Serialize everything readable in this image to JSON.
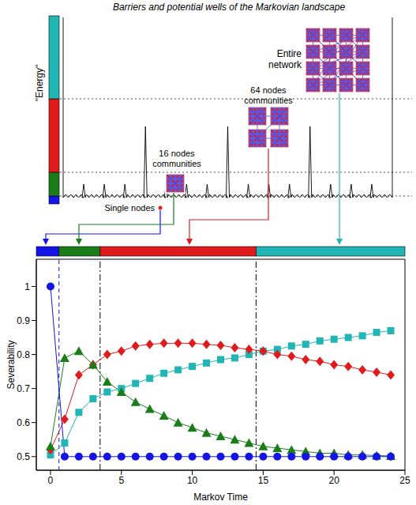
{
  "chart_data": {
    "type": "line",
    "x_label": "Markov Time",
    "y_label": "Severability",
    "x": [
      0,
      1,
      2,
      3,
      4,
      5,
      6,
      7,
      8,
      9,
      10,
      11,
      12,
      13,
      14,
      15,
      16,
      17,
      18,
      19,
      20,
      21,
      22,
      23,
      24
    ],
    "xlim": [
      -1,
      25
    ],
    "xticks": [
      0,
      5,
      10,
      15,
      20,
      25
    ],
    "ylim": [
      0.46,
      1.08
    ],
    "yticks": [
      0.5,
      0.6,
      0.7,
      0.8,
      0.9,
      1
    ],
    "grid": false,
    "phase_bounds": [
      0.6,
      3.5,
      14.5
    ],
    "series": [
      {
        "color": "#1414e6",
        "marker": "circle",
        "values": [
          1.0,
          0.5,
          0.5,
          0.5,
          0.5,
          0.5,
          0.5,
          0.5,
          0.5,
          0.5,
          0.5,
          0.5,
          0.5,
          0.5,
          0.5,
          0.5,
          0.5,
          0.5,
          0.5,
          0.5,
          0.5,
          0.5,
          0.5,
          0.5,
          0.5
        ]
      },
      {
        "color": "#1a7d1a",
        "marker": "triangle",
        "values": [
          0.53,
          0.79,
          0.81,
          0.77,
          0.72,
          0.69,
          0.66,
          0.64,
          0.62,
          0.6,
          0.585,
          0.57,
          0.56,
          0.55,
          0.54,
          0.53,
          0.525,
          0.52,
          0.515,
          0.51,
          0.51,
          0.505,
          0.505,
          0.503,
          0.502
        ]
      },
      {
        "color": "#e01b1b",
        "marker": "diamond",
        "values": [
          0.52,
          0.61,
          0.74,
          0.77,
          0.8,
          0.81,
          0.825,
          0.83,
          0.833,
          0.833,
          0.833,
          0.83,
          0.827,
          0.82,
          0.815,
          0.81,
          0.8,
          0.795,
          0.785,
          0.78,
          0.77,
          0.765,
          0.755,
          0.748,
          0.74
        ]
      },
      {
        "color": "#22b5b5",
        "marker": "square",
        "values": [
          0.505,
          0.54,
          0.63,
          0.67,
          0.69,
          0.7,
          0.715,
          0.73,
          0.745,
          0.755,
          0.765,
          0.775,
          0.785,
          0.79,
          0.8,
          0.81,
          0.815,
          0.825,
          0.83,
          0.84,
          0.845,
          0.85,
          0.855,
          0.865,
          0.87
        ]
      }
    ]
  },
  "diagram": {
    "title": "Barriers and potential wells of the Markovian landscape",
    "energy_label": "\"Energy\"",
    "scales": [
      {
        "label": "Single nodes"
      },
      {
        "label": "16 nodes communities"
      },
      {
        "label": "64 nodes communities"
      },
      {
        "label": "Entire network"
      }
    ]
  }
}
